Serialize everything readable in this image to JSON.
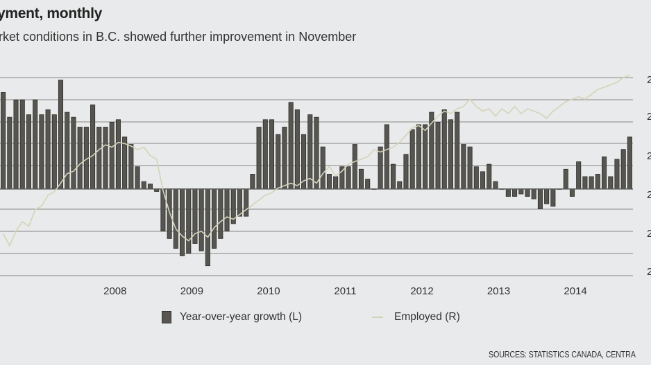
{
  "header": {
    "title": "yment, monthly",
    "subtitle": "rket conditions in B.C. showed further improvement in November"
  },
  "legend": {
    "bars_label": "Year-over-year growth (L)",
    "line_label": "Employed (R)"
  },
  "source": "SOURCES: STATISTICS CANADA, CENTRA",
  "colors": {
    "bars": "#565550",
    "bar_edge": "#2e2e2b",
    "line": "#d4d3b8",
    "grid": "#a8a8a8",
    "background": "#e9eaeb"
  },
  "chart_data": {
    "type": "bar",
    "x_tick_labels": [
      "2008",
      "2009",
      "2010",
      "2011",
      "2012",
      "2013",
      "2014"
    ],
    "right_axis_tick_labels": [
      "2",
      "2",
      "2",
      "2",
      "2",
      "2",
      "2"
    ],
    "grid": true,
    "legend_position": "bottom",
    "series": [
      {
        "name": "Year-over-year growth (L)",
        "type": "bar",
        "axis": "left",
        "ylim": [
          -3.5,
          4.5
        ],
        "values": [
          3.9,
          2.9,
          3.6,
          3.6,
          3.0,
          3.6,
          3.0,
          3.2,
          3.0,
          4.4,
          3.1,
          2.9,
          2.5,
          2.5,
          3.4,
          2.5,
          2.5,
          2.7,
          2.8,
          2.1,
          1.8,
          0.9,
          0.3,
          0.2,
          -0.1,
          -1.7,
          -2.0,
          -2.4,
          -2.7,
          -2.6,
          -2.2,
          -2.5,
          -3.1,
          -2.4,
          -2.0,
          -1.7,
          -1.4,
          -1.1,
          -1.1,
          0.6,
          2.5,
          2.8,
          2.8,
          2.2,
          2.5,
          3.5,
          3.2,
          2.2,
          3.0,
          2.9,
          1.7,
          0.6,
          0.5,
          0.9,
          0.9,
          1.8,
          0.8,
          0.4,
          0.0,
          1.7,
          2.6,
          1.0,
          0.3,
          1.4,
          2.4,
          2.6,
          2.6,
          3.1,
          2.7,
          3.2,
          2.8,
          3.1,
          1.8,
          1.7,
          0.9,
          0.7,
          1.0,
          0.3,
          0.0,
          -0.3,
          -0.3,
          -0.2,
          -0.3,
          -0.4,
          -0.8,
          -0.6,
          -0.7,
          0.0,
          0.8,
          -0.3,
          1.1,
          0.5,
          0.5,
          0.6,
          1.3,
          0.5,
          1.2,
          1.6,
          2.1
        ]
      },
      {
        "name": "Employed (R)",
        "type": "line",
        "axis": "right",
        "ylim": [
          2225,
          2390
        ],
        "values": [
          2260,
          2250,
          2262,
          2270,
          2266,
          2280,
          2283,
          2292,
          2295,
          2302,
          2310,
          2312,
          2318,
          2322,
          2325,
          2330,
          2334,
          2332,
          2336,
          2335,
          2333,
          2330,
          2332,
          2325,
          2322,
          2296,
          2278,
          2264,
          2258,
          2254,
          2260,
          2262,
          2257,
          2265,
          2270,
          2274,
          2272,
          2276,
          2280,
          2284,
          2288,
          2292,
          2294,
          2298,
          2300,
          2302,
          2300,
          2304,
          2306,
          2302,
          2310,
          2316,
          2308,
          2312,
          2318,
          2320,
          2322,
          2324,
          2330,
          2328,
          2330,
          2332,
          2336,
          2342,
          2348,
          2350,
          2346,
          2352,
          2358,
          2362,
          2360,
          2364,
          2366,
          2372,
          2366,
          2362,
          2364,
          2358,
          2364,
          2360,
          2366,
          2360,
          2364,
          2362,
          2360,
          2356,
          2362,
          2366,
          2370,
          2372,
          2374,
          2372,
          2376,
          2380,
          2382,
          2384,
          2386,
          2390,
          2392
        ]
      }
    ]
  }
}
